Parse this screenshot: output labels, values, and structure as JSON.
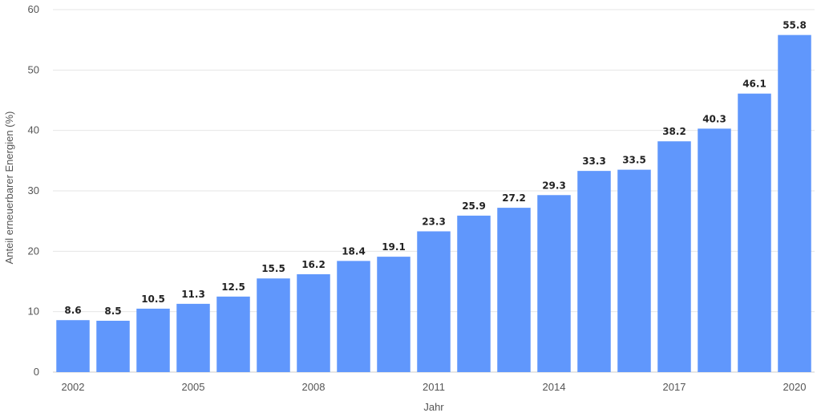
{
  "chart_data": {
    "type": "bar",
    "title": "",
    "xlabel": "Jahr",
    "ylabel": "Anteil erneuerbarer Energien (%)",
    "ylim": [
      0,
      60
    ],
    "yticks": [
      0,
      10,
      20,
      30,
      40,
      50,
      60
    ],
    "grid": true,
    "bar_color": "#6097fc",
    "categories": [
      "2002",
      "2003",
      "2004",
      "2005",
      "2006",
      "2007",
      "2008",
      "2009",
      "2010",
      "2011",
      "2012",
      "2013",
      "2014",
      "2015",
      "2016",
      "2017",
      "2018",
      "2019",
      "2020"
    ],
    "xtick_labels_shown": [
      "2002",
      "2005",
      "2008",
      "2011",
      "2014",
      "2017",
      "2020"
    ],
    "values": [
      8.6,
      8.5,
      10.5,
      11.3,
      12.5,
      15.5,
      16.2,
      18.4,
      19.1,
      23.3,
      25.9,
      27.2,
      29.3,
      33.3,
      33.5,
      38.2,
      40.3,
      46.1,
      55.8
    ]
  }
}
